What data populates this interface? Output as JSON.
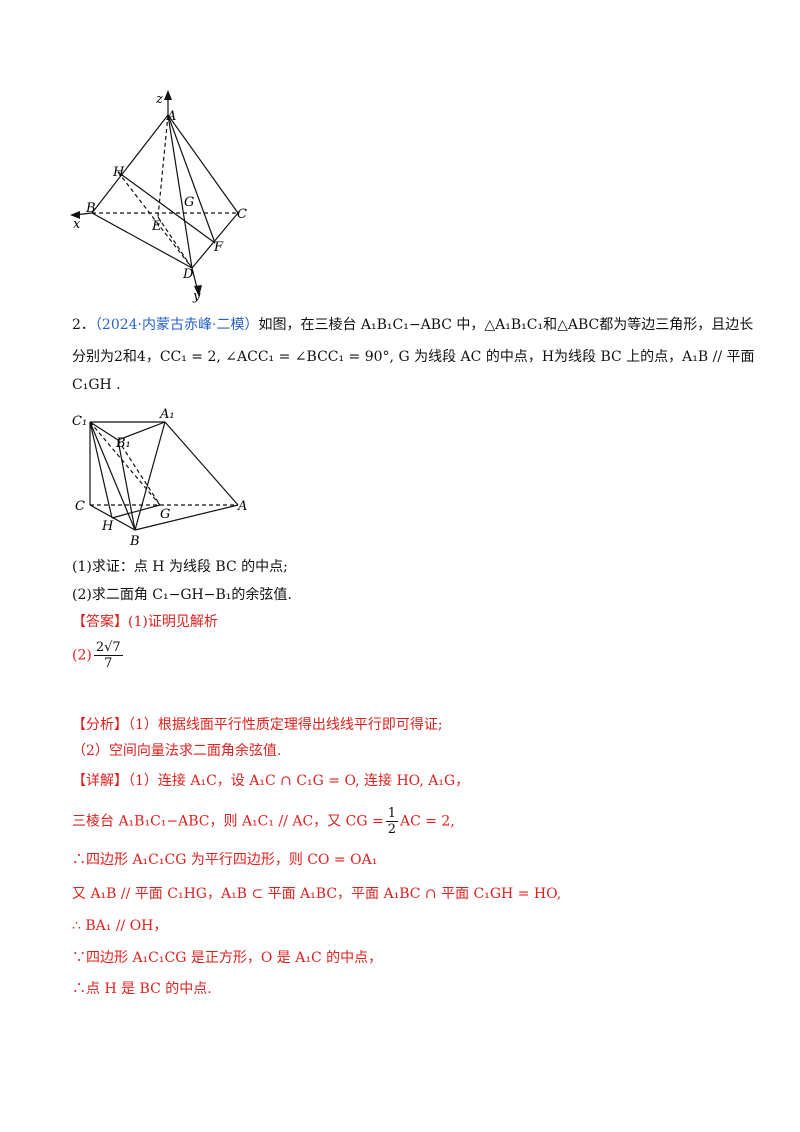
{
  "figure1": {
    "labels": [
      "z",
      "A",
      "H",
      "G",
      "B",
      "C",
      "x",
      "E",
      "F",
      "D",
      "y"
    ]
  },
  "problem": {
    "number": "2．",
    "source": "（2024·内蒙古赤峰·二模）",
    "lines": [
      "如图，在三棱台 A₁B₁C₁−ABC 中，△A₁B₁C₁和△ABC都为等边三角形，且边长",
      "分别为2和4，CC₁ = 2, ∠ACC₁ = ∠BCC₁ = 90°, G 为线段 AC 的中点，H为线段 BC 上的点，A₁B // 平面",
      "C₁GH ."
    ]
  },
  "figure2": {
    "labels": [
      "C₁",
      "A₁",
      "B₁",
      "C",
      "A",
      "G",
      "H",
      "B"
    ]
  },
  "questions": [
    "(1)求证：点 H 为线段 BC 的中点;",
    "(2)求二面角 C₁−GH−B₁的余弦值."
  ],
  "answer": {
    "tag": "【答案】",
    "part1": "(1)证明见解析",
    "part2_label": "(2)",
    "part2_num": "2√7",
    "part2_den": "7"
  },
  "analysis": [
    "【分析】（1）根据线面平行性质定理得出线线平行即可得证;",
    "（2）空间向量法求二面角余弦值."
  ],
  "detail": {
    "line1": "【详解】（1）连接 A₁C，设 A₁C ∩ C₁G = O, 连接 HO, A₁G，",
    "line2_a": "三棱台 A₁B₁C₁−ABC，则 A₁C₁ // AC，又 CG =",
    "line2_num": "1",
    "line2_den": "2",
    "line2_b": "AC = 2,",
    "lines": [
      "∴四边形 A₁C₁CG 为平行四边形，则 CO = OA₁",
      "又 A₁B // 平面 C₁HG，A₁B ⊂ 平面 A₁BC，平面 A₁BC ∩ 平面 C₁GH = HO,",
      "∴ BA₁ // OH，",
      "∵四边形 A₁C₁CG 是正方形，O 是 A₁C 的中点，",
      "∴点 H 是 BC 的中点."
    ]
  }
}
